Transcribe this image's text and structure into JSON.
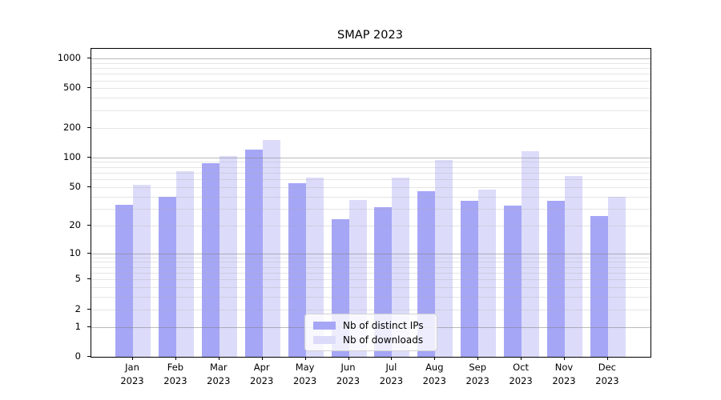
{
  "title": "SMAP 2023",
  "chart_data": {
    "type": "bar",
    "title": "SMAP 2023",
    "yscale": "log1p",
    "ylim": [
      0,
      1250
    ],
    "grid": true,
    "legend_position": "lower center",
    "y_tick_values": [
      0,
      1,
      2,
      5,
      10,
      20,
      50,
      100,
      200,
      500,
      1000
    ],
    "major_grid_values": [
      1,
      10,
      100,
      1000
    ],
    "minor_grid_values": [
      2,
      3,
      4,
      5,
      6,
      7,
      8,
      9,
      20,
      30,
      40,
      50,
      60,
      70,
      80,
      90,
      200,
      300,
      400,
      500,
      600,
      700,
      800,
      900
    ],
    "categories": [
      "Jan",
      "Feb",
      "Mar",
      "Apr",
      "May",
      "Jun",
      "Jul",
      "Aug",
      "Sep",
      "Oct",
      "Nov",
      "Dec"
    ],
    "category_year": "2023",
    "series": [
      {
        "name": "Nb of distinct IPs",
        "color": "#a6a6f6",
        "values": [
          33,
          40,
          88,
          120,
          55,
          23,
          31,
          45,
          36,
          32,
          36,
          25
        ]
      },
      {
        "name": "Nb of downloads",
        "color": "#dcdcfa",
        "values": [
          53,
          73,
          103,
          150,
          62,
          37,
          63,
          94,
          47,
          115,
          65,
          40
        ]
      }
    ]
  },
  "colors": {
    "bar_ips": "#a6a6f6",
    "bar_downloads": "#dcdcfa",
    "axis": "#000000",
    "legend_border": "#d2d2d2"
  }
}
